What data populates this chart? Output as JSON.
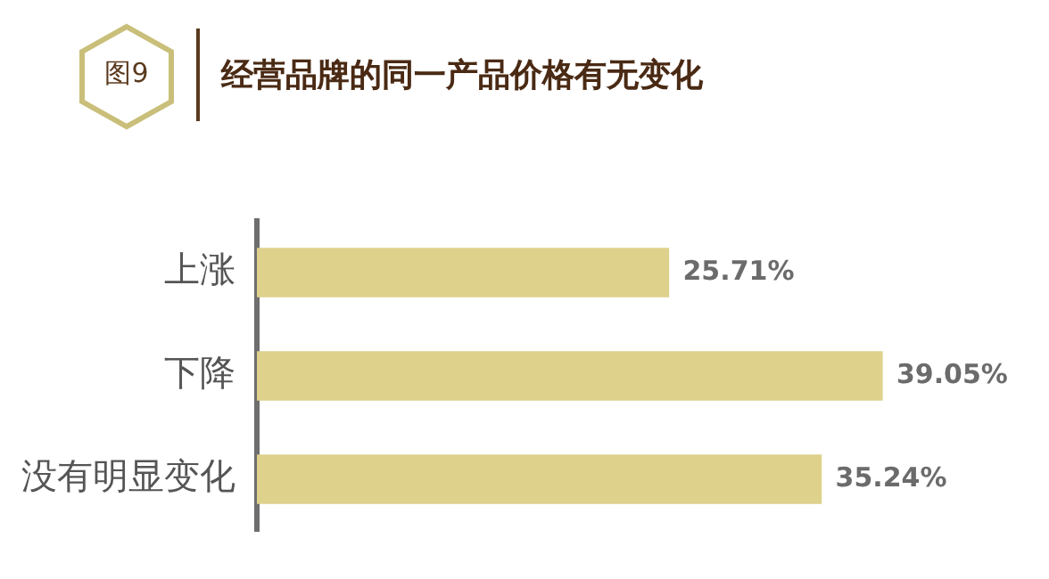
{
  "chart_data": {
    "type": "bar",
    "orientation": "horizontal",
    "title": "经营品牌的同一产品价格有无变化",
    "annotations": [
      "图9"
    ],
    "categories": [
      "上涨",
      "下降",
      "没有明显变化"
    ],
    "values": [
      25.71,
      39.05,
      35.24
    ],
    "color": "#ddd18c",
    "value_labels": [
      "25.71%",
      "39.05%",
      "35.24%"
    ],
    "grid": false,
    "legend": false
  }
}
